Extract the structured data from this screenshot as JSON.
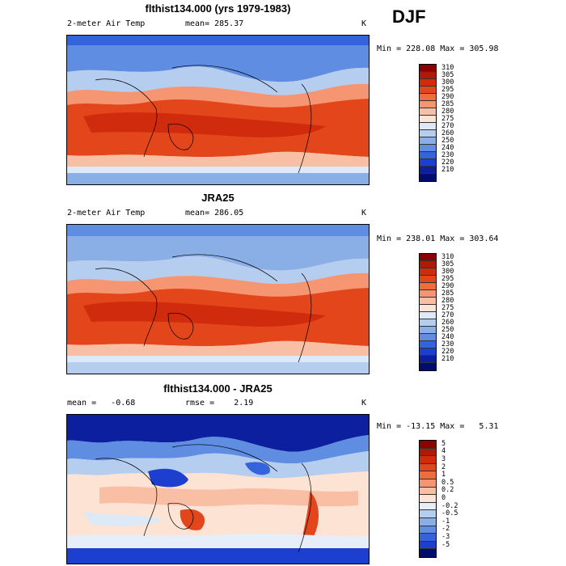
{
  "season": "DJF",
  "panels": [
    {
      "title": "flthist134.000 (yrs 1979-1983)",
      "left_label": "2-meter Air Temp",
      "mean_text": "mean= 285.37",
      "unit": "K",
      "minmax": "Min = 228.08 Max = 305.98",
      "colorbar_labels": [
        "310",
        "305",
        "300",
        "295",
        "290",
        "285",
        "280",
        "275",
        "270",
        "260",
        "250",
        "240",
        "230",
        "220",
        "210"
      ],
      "colors": [
        "#8b0000",
        "#b01a05",
        "#cf2b0c",
        "#e4461c",
        "#ef6c3d",
        "#f59571",
        "#f9bfa5",
        "#fde3d4",
        "#dde9f6",
        "#b5cdee",
        "#8aaee6",
        "#5f8de2",
        "#3463dc",
        "#1c3fcf",
        "#0c1f9e",
        "#000c6e"
      ]
    },
    {
      "title": "JRA25",
      "left_label": "2-meter Air Temp",
      "mean_text": "mean= 286.05",
      "unit": "K",
      "minmax": "Min = 238.01 Max = 303.64",
      "colorbar_labels": [
        "310",
        "305",
        "300",
        "295",
        "290",
        "285",
        "280",
        "275",
        "270",
        "260",
        "250",
        "240",
        "230",
        "220",
        "210"
      ],
      "colors": [
        "#8b0000",
        "#b01a05",
        "#cf2b0c",
        "#e4461c",
        "#ef6c3d",
        "#f59571",
        "#f9bfa5",
        "#fde3d4",
        "#dde9f6",
        "#b5cdee",
        "#8aaee6",
        "#5f8de2",
        "#3463dc",
        "#1c3fcf",
        "#0c1f9e",
        "#000c6e"
      ]
    },
    {
      "title": "flthist134.000 - JRA25",
      "left_label": "mean =   -0.68",
      "mean_text": "rmse =    2.19",
      "unit": "K",
      "minmax": "Min = -13.15 Max =   5.31",
      "colorbar_labels": [
        "5",
        "4",
        "3",
        "2",
        "1",
        "0.5",
        "0.2",
        "0",
        "-0.2",
        "-0.5",
        "-1",
        "-2",
        "-3",
        "-5"
      ],
      "colors": [
        "#8b0000",
        "#b01a05",
        "#cf2b0c",
        "#e4461c",
        "#ef6c3d",
        "#f59571",
        "#f9bfa5",
        "#fde3d4",
        "#e6eefa",
        "#b5cdee",
        "#8aaee6",
        "#5f8de2",
        "#3463dc",
        "#1c3fcf",
        "#000c6e"
      ]
    }
  ],
  "chart_data": {
    "type": "heatmap",
    "title": "DJF",
    "panels": [
      {
        "title": "flthist134.000 (yrs 1979-1983)",
        "variable": "2-meter Air Temp",
        "mean": 285.37,
        "unit": "K",
        "min": 228.08,
        "max": 305.98
      },
      {
        "title": "JRA25",
        "variable": "2-meter Air Temp",
        "mean": 286.05,
        "unit": "K",
        "min": 238.01,
        "max": 303.64
      },
      {
        "title": "flthist134.000 - JRA25",
        "mean": -0.68,
        "rmse": 2.19,
        "unit": "K",
        "min": -13.15,
        "max": 5.31
      }
    ],
    "levels_abs": [
      210,
      220,
      230,
      240,
      250,
      260,
      270,
      275,
      280,
      285,
      290,
      295,
      300,
      305,
      310
    ],
    "levels_diff": [
      -5,
      -3,
      -2,
      -1,
      -0.5,
      -0.2,
      0,
      0.2,
      0.5,
      1,
      2,
      3,
      4,
      5
    ]
  }
}
